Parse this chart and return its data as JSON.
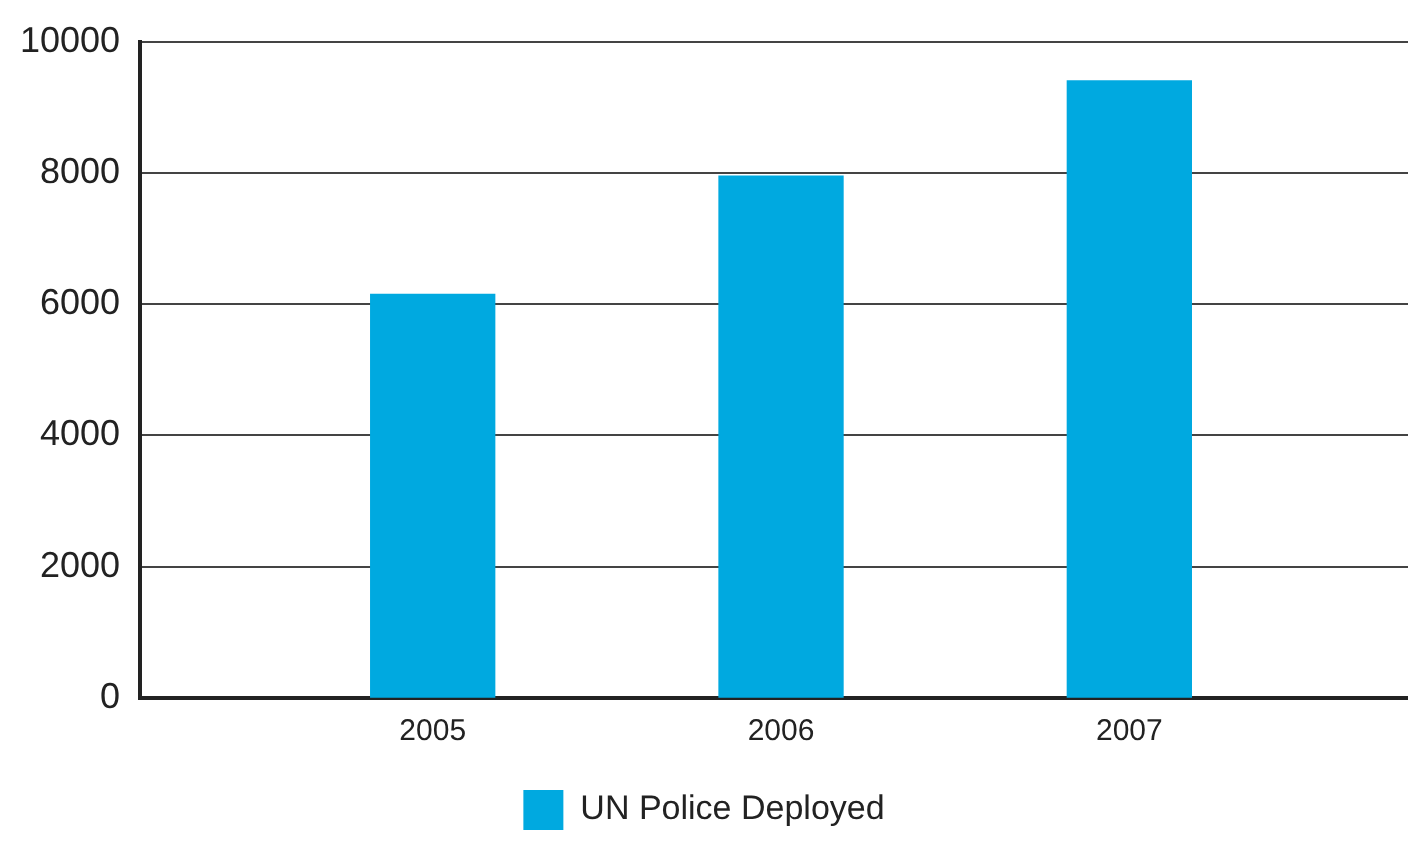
{
  "chart_data": {
    "type": "bar",
    "categories": [
      "2005",
      "2006",
      "2007"
    ],
    "series": [
      {
        "name": "UN Police Deployed",
        "color": "#00a9e0",
        "values": [
          6150,
          7950,
          9400
        ]
      }
    ],
    "ylim": [
      0,
      10000
    ],
    "yticks": [
      0,
      2000,
      4000,
      6000,
      8000,
      10000
    ],
    "grid": "y",
    "legend": "bottom"
  }
}
